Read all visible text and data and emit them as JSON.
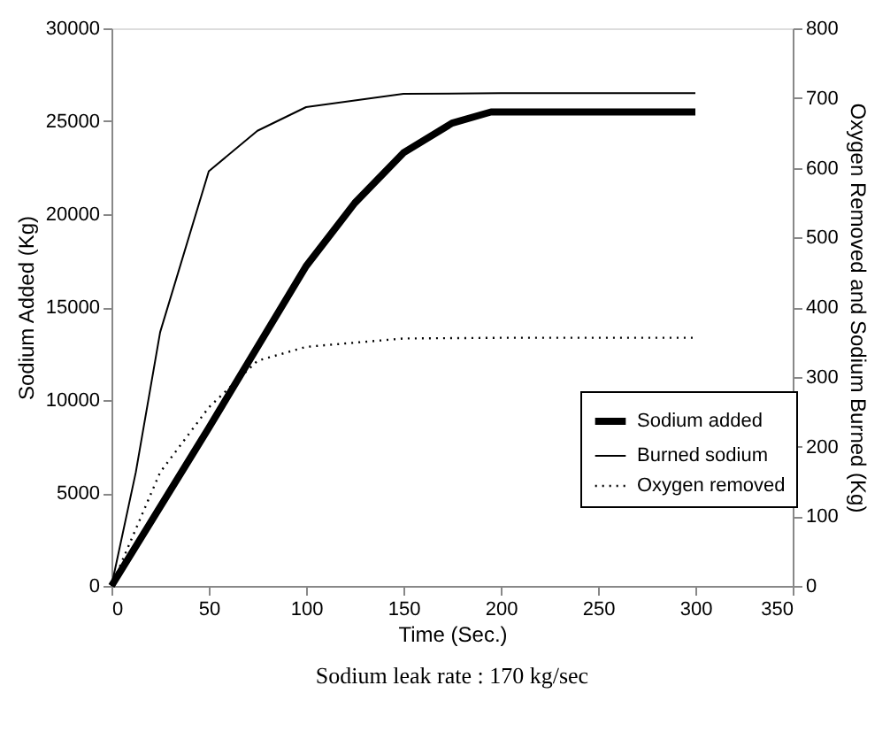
{
  "chart_data": {
    "type": "line",
    "xlabel": "Time (Sec.)",
    "ylabel": "Sodium Added (Kg)",
    "y2label": "Oxygen Removed and Sodium Burned (Kg)",
    "xlim": [
      0,
      350
    ],
    "xticks": [
      0,
      50,
      100,
      150,
      200,
      250,
      300,
      350
    ],
    "ylim": [
      0,
      30000
    ],
    "yticks": [
      0,
      5000,
      10000,
      15000,
      20000,
      25000,
      30000
    ],
    "y2lim": [
      0,
      800
    ],
    "y2ticks": [
      0,
      100,
      200,
      300,
      400,
      500,
      600,
      700,
      800
    ],
    "grid": false,
    "legend": "bottom right",
    "marker": "none",
    "series": [
      {
        "name": "Sodium added",
        "color": "#000000",
        "line_style": "solid",
        "x": [
          0,
          50,
          100,
          125,
          150,
          175,
          195,
          300
        ],
        "values": [
          0,
          8500,
          17200,
          20600,
          23300,
          24900,
          25500,
          25500
        ]
      },
      {
        "name": "Burned sodium",
        "color": "#000000",
        "line_style": "solid",
        "axis": "y2",
        "x": [
          0,
          12.5,
          25,
          50,
          75,
          100,
          150,
          200,
          300
        ],
        "values": [
          0,
          163,
          364,
          595,
          653,
          687,
          706,
          707,
          707
        ]
      },
      {
        "name": "Oxygen removed",
        "color": "#000000",
        "line_style": "dotted",
        "axis": "y2",
        "x": [
          0,
          25,
          50,
          75,
          100,
          150,
          200,
          300
        ],
        "values": [
          0,
          163,
          256,
          323,
          343,
          355,
          356,
          356
        ]
      }
    ],
    "annotations": [
      "Sodium leak rate : 170 kg/sec"
    ]
  }
}
